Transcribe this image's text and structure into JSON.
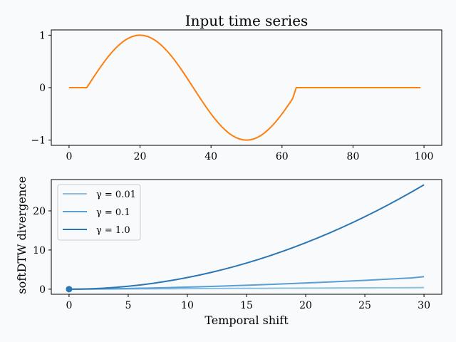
{
  "chart_data": [
    {
      "type": "line",
      "title": "Input time series",
      "xlabel": "",
      "ylabel": "",
      "xlim": [
        -5,
        105
      ],
      "ylim": [
        -1.1,
        1.1
      ],
      "xticks": [
        0,
        20,
        40,
        60,
        80,
        100
      ],
      "xtick_labels": [
        "0",
        "20",
        "40",
        "60",
        "80",
        "100"
      ],
      "yticks": [
        -1,
        0,
        1
      ],
      "ytick_labels": [
        "−1",
        "0",
        "1"
      ],
      "grid": false,
      "series": [
        {
          "color": "#ff7f0e",
          "x": [
            0,
            1,
            2,
            3,
            4,
            5,
            6,
            7,
            8,
            9,
            10,
            11,
            12,
            13,
            14,
            15,
            16,
            17,
            18,
            19,
            20,
            21,
            22,
            23,
            24,
            25,
            26,
            27,
            28,
            29,
            30,
            31,
            32,
            33,
            34,
            35,
            36,
            37,
            38,
            39,
            40,
            41,
            42,
            43,
            44,
            45,
            46,
            47,
            48,
            49,
            50,
            51,
            52,
            53,
            54,
            55,
            56,
            57,
            58,
            59,
            60,
            61,
            62,
            63,
            64,
            65,
            66,
            67,
            68,
            69,
            70,
            71,
            72,
            73,
            74,
            75,
            76,
            77,
            78,
            79,
            80,
            81,
            82,
            83,
            84,
            85,
            86,
            87,
            88,
            89,
            90,
            91,
            92,
            93,
            94,
            95,
            96,
            97,
            98,
            99
          ],
          "y": [
            0,
            0,
            0,
            0,
            0,
            0,
            0.104,
            0.208,
            0.309,
            0.407,
            0.5,
            0.588,
            0.669,
            0.743,
            0.809,
            0.866,
            0.914,
            0.951,
            0.978,
            0.995,
            1,
            0.995,
            0.978,
            0.951,
            0.914,
            0.866,
            0.809,
            0.743,
            0.669,
            0.588,
            0.5,
            0.407,
            0.309,
            0.208,
            0.105,
            0,
            -0.105,
            -0.208,
            -0.309,
            -0.407,
            -0.5,
            -0.588,
            -0.669,
            -0.743,
            -0.809,
            -0.866,
            -0.914,
            -0.951,
            -0.978,
            -0.995,
            -1,
            -0.995,
            -0.978,
            -0.951,
            -0.914,
            -0.866,
            -0.809,
            -0.743,
            -0.669,
            -0.588,
            -0.5,
            -0.407,
            -0.309,
            -0.208,
            0,
            0,
            0,
            0,
            0,
            0,
            0,
            0,
            0,
            0,
            0,
            0,
            0,
            0,
            0,
            0,
            0,
            0,
            0,
            0,
            0,
            0,
            0,
            0,
            0,
            0,
            0,
            0,
            0,
            0,
            0,
            0,
            0,
            0,
            0,
            0
          ]
        }
      ]
    },
    {
      "type": "line",
      "title": "",
      "xlabel": "Temporal shift",
      "ylabel": "softDTW divergence",
      "xlim": [
        -1.5,
        31.5
      ],
      "ylim": [
        -1.3,
        28.0
      ],
      "xticks": [
        0,
        5,
        10,
        15,
        20,
        25,
        30
      ],
      "xtick_labels": [
        "0",
        "5",
        "10",
        "15",
        "20",
        "25",
        "30"
      ],
      "yticks": [
        0,
        10,
        20
      ],
      "ytick_labels": [
        "0",
        "10",
        "20"
      ],
      "grid": false,
      "legend": "top-left",
      "x": [
        0,
        1,
        2,
        3,
        4,
        5,
        6,
        7,
        8,
        9,
        10,
        11,
        12,
        13,
        14,
        15,
        16,
        17,
        18,
        19,
        20,
        21,
        22,
        23,
        24,
        25,
        26,
        27,
        28,
        29,
        30
      ],
      "series": [
        {
          "name": "γ = 0.01",
          "color": "#8fbfe0",
          "y": [
            0,
            0.01,
            0.03,
            0.04,
            0.05,
            0.07,
            0.08,
            0.09,
            0.11,
            0.12,
            0.13,
            0.15,
            0.16,
            0.17,
            0.19,
            0.2,
            0.21,
            0.23,
            0.24,
            0.25,
            0.27,
            0.28,
            0.29,
            0.31,
            0.32,
            0.33,
            0.35,
            0.36,
            0.37,
            0.39,
            0.4
          ]
        },
        {
          "name": "γ = 0.1",
          "color": "#5a9fd4",
          "y": [
            0,
            0.02,
            0.05,
            0.09,
            0.13,
            0.18,
            0.24,
            0.3,
            0.37,
            0.45,
            0.53,
            0.61,
            0.7,
            0.8,
            0.9,
            1.0,
            1.11,
            1.22,
            1.34,
            1.46,
            1.58,
            1.71,
            1.84,
            1.98,
            2.12,
            2.26,
            2.41,
            2.56,
            2.72,
            2.88,
            3.2
          ]
        },
        {
          "name": "γ = 1.0",
          "color": "#2c76b3",
          "y": [
            0,
            0.03,
            0.12,
            0.27,
            0.47,
            0.74,
            1.07,
            1.45,
            1.9,
            2.4,
            2.97,
            3.59,
            4.27,
            5.01,
            5.81,
            6.67,
            7.59,
            8.57,
            9.6,
            10.7,
            11.85,
            13.07,
            14.34,
            15.67,
            17.06,
            18.51,
            20.02,
            21.59,
            23.22,
            24.9,
            26.65
          ]
        }
      ],
      "marker": {
        "x": 0,
        "y": 0,
        "color": "#2c76b3"
      }
    }
  ]
}
